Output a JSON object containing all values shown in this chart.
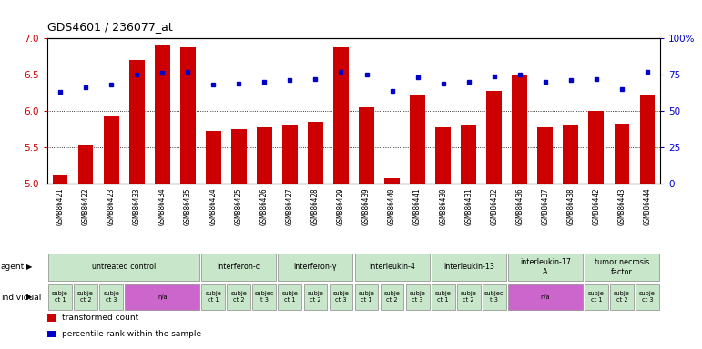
{
  "title": "GDS4601 / 236077_at",
  "samples": [
    "GSM886421",
    "GSM886422",
    "GSM886423",
    "GSM886433",
    "GSM886434",
    "GSM886435",
    "GSM886424",
    "GSM886425",
    "GSM886426",
    "GSM886427",
    "GSM886428",
    "GSM886429",
    "GSM886439",
    "GSM886440",
    "GSM886441",
    "GSM886430",
    "GSM886431",
    "GSM886432",
    "GSM886436",
    "GSM886437",
    "GSM886438",
    "GSM886442",
    "GSM886443",
    "GSM886444"
  ],
  "bar_values": [
    5.12,
    5.53,
    5.92,
    6.7,
    6.9,
    6.88,
    5.72,
    5.75,
    5.77,
    5.8,
    5.85,
    6.87,
    6.05,
    5.07,
    6.21,
    5.77,
    5.8,
    6.27,
    6.5,
    5.77,
    5.8,
    6.0,
    5.82,
    6.23
  ],
  "dot_values": [
    63,
    66,
    68,
    75,
    76,
    77,
    68,
    69,
    70,
    71,
    72,
    77,
    75,
    64,
    73,
    69,
    70,
    74,
    75,
    70,
    71,
    72,
    65,
    77
  ],
  "ylim_left": [
    5.0,
    7.0
  ],
  "ylim_right": [
    0,
    100
  ],
  "yticks_left": [
    5.0,
    5.5,
    6.0,
    6.5,
    7.0
  ],
  "yticks_right": [
    0,
    25,
    50,
    75,
    100
  ],
  "ytick_labels_right": [
    "0",
    "25",
    "50",
    "75",
    "100%"
  ],
  "bar_color": "#cc0000",
  "dot_color": "#0000cc",
  "bar_bottom": 5.0,
  "agents": [
    {
      "label": "untreated control",
      "start": 0,
      "end": 6,
      "color": "#c8e6c9"
    },
    {
      "label": "interferon-α",
      "start": 6,
      "end": 9,
      "color": "#c8e6c9"
    },
    {
      "label": "interferon-γ",
      "start": 9,
      "end": 12,
      "color": "#c8e6c9"
    },
    {
      "label": "interleukin-4",
      "start": 12,
      "end": 15,
      "color": "#c8e6c9"
    },
    {
      "label": "interleukin-13",
      "start": 15,
      "end": 18,
      "color": "#c8e6c9"
    },
    {
      "label": "interleukin-17\nA",
      "start": 18,
      "end": 21,
      "color": "#c8e6c9"
    },
    {
      "label": "tumor necrosis\nfactor",
      "start": 21,
      "end": 24,
      "color": "#c8e6c9"
    }
  ],
  "individuals": [
    {
      "label": "subje\nct 1",
      "start": 0,
      "end": 1,
      "color": "#c8e6c9"
    },
    {
      "label": "subje\nct 2",
      "start": 1,
      "end": 2,
      "color": "#c8e6c9"
    },
    {
      "label": "subje\nct 3",
      "start": 2,
      "end": 3,
      "color": "#c8e6c9"
    },
    {
      "label": "n/a",
      "start": 3,
      "end": 6,
      "color": "#cc66cc"
    },
    {
      "label": "subje\nct 1",
      "start": 6,
      "end": 7,
      "color": "#c8e6c9"
    },
    {
      "label": "subje\nct 2",
      "start": 7,
      "end": 8,
      "color": "#c8e6c9"
    },
    {
      "label": "subjec\nt 3",
      "start": 8,
      "end": 9,
      "color": "#c8e6c9"
    },
    {
      "label": "subje\nct 1",
      "start": 9,
      "end": 10,
      "color": "#c8e6c9"
    },
    {
      "label": "subje\nct 2",
      "start": 10,
      "end": 11,
      "color": "#c8e6c9"
    },
    {
      "label": "subje\nct 3",
      "start": 11,
      "end": 12,
      "color": "#c8e6c9"
    },
    {
      "label": "subje\nct 1",
      "start": 12,
      "end": 13,
      "color": "#c8e6c9"
    },
    {
      "label": "subje\nct 2",
      "start": 13,
      "end": 14,
      "color": "#c8e6c9"
    },
    {
      "label": "subje\nct 3",
      "start": 14,
      "end": 15,
      "color": "#c8e6c9"
    },
    {
      "label": "subje\nct 1",
      "start": 15,
      "end": 16,
      "color": "#c8e6c9"
    },
    {
      "label": "subje\nct 2",
      "start": 16,
      "end": 17,
      "color": "#c8e6c9"
    },
    {
      "label": "subjec\nt 3",
      "start": 17,
      "end": 18,
      "color": "#c8e6c9"
    },
    {
      "label": "n/a",
      "start": 18,
      "end": 21,
      "color": "#cc66cc"
    },
    {
      "label": "subje\nct 1",
      "start": 21,
      "end": 22,
      "color": "#c8e6c9"
    },
    {
      "label": "subje\nct 2",
      "start": 22,
      "end": 23,
      "color": "#c8e6c9"
    },
    {
      "label": "subje\nct 3",
      "start": 23,
      "end": 24,
      "color": "#c8e6c9"
    }
  ],
  "legend_items": [
    {
      "label": "transformed count",
      "color": "#cc0000"
    },
    {
      "label": "percentile rank within the sample",
      "color": "#0000cc"
    }
  ],
  "bg_color": "#ffffff",
  "tick_label_color_left": "#cc0000",
  "tick_label_color_right": "#0000cc",
  "sample_bg_color": "#cccccc",
  "agent_label_color": "#006600",
  "ind_label_color": "#006600"
}
